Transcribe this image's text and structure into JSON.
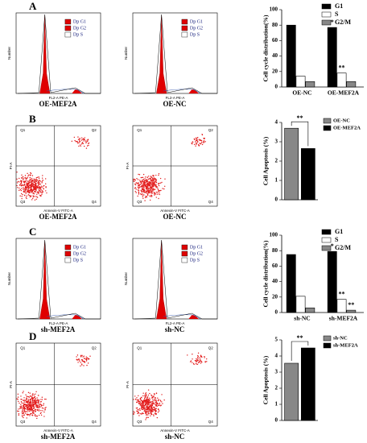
{
  "panels": [
    {
      "label": "A",
      "captions": [
        "OE-MEF2A",
        "OE-NC"
      ]
    },
    {
      "label": "B",
      "captions": [
        "OE-MEF2A",
        "OE-NC"
      ]
    },
    {
      "label": "C",
      "captions": [
        "sh-MEF2A",
        "sh-NC"
      ]
    },
    {
      "label": "D",
      "captions": [
        "sh-MEF2A",
        "sh-NC"
      ]
    }
  ],
  "histogram": {
    "legend": [
      "Dp G1",
      "Dp G2",
      "Dp S"
    ],
    "xlabel": "FL2-A PE-A",
    "ylabel": "Number"
  },
  "dotplot": {
    "quadrants": [
      "Q1",
      "Q2",
      "Q3",
      "Q4"
    ],
    "xlabel": "Annexin-V FITC-A",
    "ylabel": "PI-A"
  },
  "chart_data": [
    {
      "type": "bar",
      "ylabel": "Cell cycle distribution(%)",
      "categories": [
        "OE-NC",
        "OE-MEF2A"
      ],
      "series": [
        {
          "name": "G1",
          "color": "#000000",
          "values": [
            80,
            77
          ]
        },
        {
          "name": "S",
          "color": "#ffffff",
          "values": [
            14,
            18
          ]
        },
        {
          "name": "G2/M",
          "color": "#888888",
          "values": [
            7,
            7
          ]
        }
      ],
      "ylim": [
        0,
        100
      ],
      "yticks": [
        0,
        20,
        40,
        60,
        80,
        100
      ],
      "annotations": [
        "*",
        "**"
      ]
    },
    {
      "type": "bar",
      "ylabel": "Cell Apoptosis (%)",
      "categories": [
        null
      ],
      "series": [
        {
          "name": "OE-NC",
          "color": "#888888",
          "values": [
            3.7
          ]
        },
        {
          "name": "OE-MEF2A",
          "color": "#000000",
          "values": [
            2.65
          ]
        }
      ],
      "ylim": [
        0,
        4
      ],
      "yticks": [
        0,
        1,
        2,
        3,
        4
      ],
      "annotations": [
        "**"
      ]
    },
    {
      "type": "bar",
      "ylabel": "Cell cycle distribution(%)",
      "categories": [
        "sh-NC",
        "sh-MEF2A"
      ],
      "series": [
        {
          "name": "G1",
          "color": "#000000",
          "values": [
            75,
            79
          ]
        },
        {
          "name": "S",
          "color": "#ffffff",
          "values": [
            21,
            17
          ]
        },
        {
          "name": "G2/M",
          "color": "#888888",
          "values": [
            6,
            3
          ]
        }
      ],
      "ylim": [
        0,
        100
      ],
      "yticks": [
        0,
        20,
        40,
        60,
        80,
        100
      ],
      "annotations": [
        "*",
        "**",
        "**"
      ]
    },
    {
      "type": "bar",
      "ylabel": "Cell Apoptosis (%)",
      "categories": [
        null
      ],
      "series": [
        {
          "name": "sh-NC",
          "color": "#888888",
          "values": [
            3.55
          ]
        },
        {
          "name": "sh-MEF2A",
          "color": "#000000",
          "values": [
            4.5
          ]
        }
      ],
      "ylim": [
        0,
        5
      ],
      "yticks": [
        0,
        1,
        2,
        3,
        4,
        5
      ],
      "annotations": [
        "**"
      ]
    }
  ]
}
